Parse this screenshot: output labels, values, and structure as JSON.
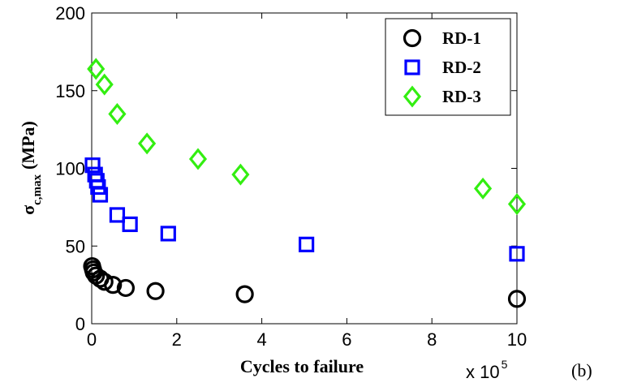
{
  "chart_data": {
    "type": "scatter",
    "title": "",
    "xlabel": "Cycles to failure",
    "ylabel_main": "σ",
    "ylabel_sub": "c,max",
    "ylabel_unit": "(MPa)",
    "x_multiplier_text": "x 10",
    "x_multiplier_exp": "5",
    "x_unit_scale": 100000,
    "xlim": [
      0,
      1000000
    ],
    "ylim": [
      0,
      200
    ],
    "xticks": [
      0,
      2,
      4,
      6,
      8,
      10
    ],
    "yticks": [
      0,
      50,
      100,
      150,
      200
    ],
    "grid": false,
    "legend_position": "top-right",
    "annotation": "(b)",
    "series": [
      {
        "name": "RD-1",
        "marker": "circle",
        "color": "#000000",
        "x": [
          1000,
          3000,
          5000,
          10000,
          20000,
          30000,
          50000,
          80000,
          150000,
          360000,
          1000000
        ],
        "y": [
          37,
          35,
          33,
          31,
          29,
          27,
          25,
          23,
          21,
          19,
          16
        ]
      },
      {
        "name": "RD-2",
        "marker": "square",
        "color": "#0000ff",
        "x": [
          2000,
          8000,
          12000,
          15000,
          20000,
          60000,
          90000,
          180000,
          505000,
          1000000
        ],
        "y": [
          102,
          96,
          92,
          88,
          83,
          70,
          64,
          58,
          51,
          45
        ]
      },
      {
        "name": "RD-3",
        "marker": "diamond",
        "color": "#33ee11",
        "x": [
          10000,
          30000,
          60000,
          130000,
          250000,
          350000,
          920000,
          1000000
        ],
        "y": [
          164,
          154,
          135,
          116,
          106,
          96,
          87,
          77
        ]
      }
    ]
  }
}
